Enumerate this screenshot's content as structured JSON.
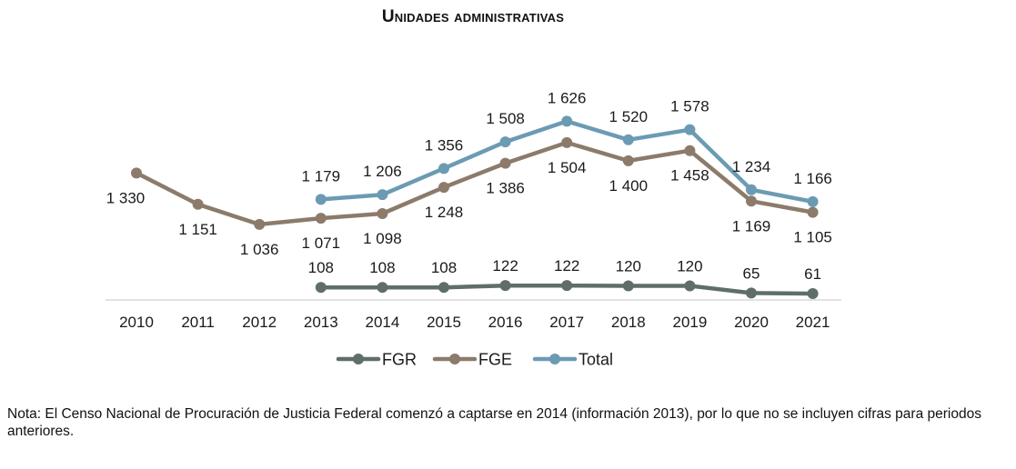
{
  "chart_data": {
    "type": "line",
    "title": "Unidades administrativas",
    "categories": [
      "2010",
      "2011",
      "2012",
      "2013",
      "2014",
      "2015",
      "2016",
      "2017",
      "2018",
      "2019",
      "2020",
      "2021"
    ],
    "series": [
      {
        "name": "FGR",
        "color": "#5f6e69",
        "values": [
          null,
          null,
          null,
          108,
          108,
          108,
          122,
          122,
          120,
          120,
          65,
          61
        ],
        "labels": [
          null,
          null,
          null,
          "108",
          "108",
          "108",
          "122",
          "122",
          "120",
          "120",
          "65",
          "61"
        ]
      },
      {
        "name": "FGE",
        "color": "#8c7b6b",
        "values": [
          1330,
          1151,
          1036,
          1071,
          1098,
          1248,
          1386,
          1504,
          1400,
          1458,
          1169,
          1105
        ],
        "labels": [
          "1 330",
          "1 151",
          "1 036",
          "1 071",
          "1 098",
          "1 248",
          "1 386",
          "1 504",
          "1 400",
          "1 458",
          "1 169",
          "1 105"
        ]
      },
      {
        "name": "Total",
        "color": "#6b9bb3",
        "values": [
          null,
          null,
          null,
          1179,
          1206,
          1356,
          1508,
          1626,
          1520,
          1578,
          1234,
          1166
        ],
        "labels": [
          null,
          null,
          null,
          "1 179",
          "1 206",
          "1 356",
          "1 508",
          "1 626",
          "1 520",
          "1 578",
          "1 234",
          "1 166"
        ]
      }
    ],
    "axis_color": "#d9d9d9",
    "grid": false,
    "legend": "bottom-center"
  },
  "note": "Nota: El Censo Nacional de Procuración de Justicia Federal comenzó a captarse en 2014 (información 2013), por lo que no se incluyen cifras para periodos anteriores."
}
